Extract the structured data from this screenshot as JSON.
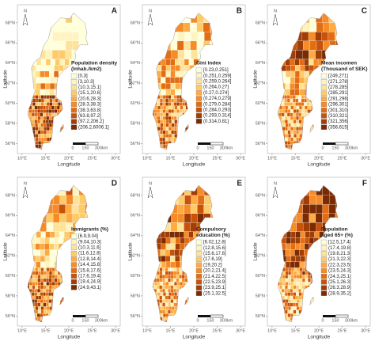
{
  "axes": {
    "x_label": "Longitude",
    "y_label": "Latitude",
    "x_ticks": [
      {
        "value": 10,
        "label": "10°E"
      },
      {
        "value": 15,
        "label": "15°E"
      },
      {
        "value": 20,
        "label": "20°E"
      },
      {
        "value": 25,
        "label": "25°E"
      },
      {
        "value": 30,
        "label": "30°E"
      }
    ],
    "y_ticks": [
      {
        "value": 68,
        "label": "68°N"
      },
      {
        "value": 66,
        "label": "66°N"
      },
      {
        "value": 64,
        "label": "64°N"
      },
      {
        "value": 62,
        "label": "62°N"
      },
      {
        "value": 60,
        "label": "60°N"
      },
      {
        "value": 58,
        "label": "58°N"
      },
      {
        "value": 56,
        "label": "56°N"
      }
    ]
  },
  "north": "N",
  "scale_labels": [
    "0",
    "150",
    "300km"
  ],
  "palette": [
    "#ffffd9",
    "#fff3c0",
    "#fee39b",
    "#fecb6a",
    "#feab45",
    "#f68c28",
    "#e36d14",
    "#c8520a",
    "#a13e05",
    "#7a2b04"
  ],
  "panels": [
    {
      "letter": "A",
      "legend_title": [
        "Population density",
        "(Inhab./km2)"
      ],
      "classes": [
        "[0,3]",
        "[3,10.3]",
        "(10.3,15.1]",
        "(15.1,20.6]",
        "(20.6,28.3]",
        "(28.3,38.3]",
        "(38.3,63.8]",
        "(63.8,97.2]",
        "(97.2,206.2]",
        "(206.2,6006.1]"
      ]
    },
    {
      "letter": "B",
      "legend_title": [
        "Gini index"
      ],
      "classes": [
        "[0.23,0.251]",
        "(0.251,0.259]",
        "(0.259,0.264]",
        "(0.264,0.27]",
        "(0.27,0.274]",
        "(0.274,0.279]",
        "(0.279,0.284]",
        "(0.284,0.293]",
        "(0.293,0.314]",
        "(0.314,0.81]"
      ]
    },
    {
      "letter": "C",
      "legend_title": [
        "Mean incomen",
        "(Thousand of SEK)"
      ],
      "classes": [
        "[249,271]",
        "(271,278]",
        "(278,285]",
        "(285,291]",
        "(291,296]",
        "(296,301]",
        "(301,310]",
        "(310,321]",
        "(321,356]",
        "(356,615]"
      ]
    },
    {
      "letter": "D",
      "legend_title": [
        "Immigrants (%)"
      ],
      "classes": [
        "[6.9,9.04]",
        "(9.04,10.3]",
        "(10.3,11.6]",
        "(11.6,12.8]",
        "(12.8,14.4]",
        "(14.4,15.8]",
        "(15.8,17.6]",
        "(17.6,19.4]",
        "(19.4,24.9]",
        "(24.9,43.1]"
      ]
    },
    {
      "letter": "E",
      "legend_title": [
        "Compulsory",
        "education (%)"
      ],
      "classes": [
        "[6.02,12.8]",
        "(12.8,15.6]",
        "(15.6,17.6]",
        "(17.6,19]",
        "(19,20.2]",
        "(20.2,21.4]",
        "(21.4,22.5]",
        "(22.5,23.9]",
        "(23.9,25.1]",
        "(25.1,32.5]"
      ]
    },
    {
      "letter": "F",
      "legend_title": [
        "Population",
        "aged 65+ (%)"
      ],
      "classes": [
        "[12.5,17.4]",
        "(17.4,19.8]",
        "(19.8,21.3]",
        "(21.3,22.3]",
        "(22.3,23.5]",
        "(23.5,24.3]",
        "(24.3,25.1]",
        "(25.1,26.3]",
        "(26.3,28.9]",
        "(28.9,35.2]"
      ]
    }
  ]
}
